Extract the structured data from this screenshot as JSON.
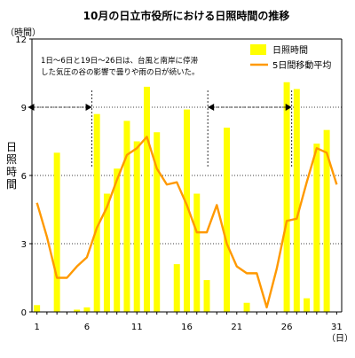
{
  "chart_data": {
    "type": "bar",
    "title": "10月の日立市役所における日照時間の推移",
    "y_unit_label": "（時間）",
    "x_unit_label": "（日）",
    "ylabel": "日照時間",
    "ylim": [
      0,
      12
    ],
    "yticks": [
      0,
      3,
      6,
      9,
      12
    ],
    "xlim": [
      1,
      31
    ],
    "xticks": [
      1,
      6,
      11,
      16,
      21,
      26,
      31
    ],
    "days": [
      1,
      2,
      3,
      4,
      5,
      6,
      7,
      8,
      9,
      10,
      11,
      12,
      13,
      14,
      15,
      16,
      17,
      18,
      19,
      20,
      21,
      22,
      23,
      24,
      25,
      26,
      27,
      28,
      29,
      30,
      31
    ],
    "series": [
      {
        "name": "日照時間",
        "type": "bar",
        "color": "#ffff00",
        "values": [
          0.3,
          0,
          7.0,
          0,
          0.1,
          0.2,
          8.7,
          5.2,
          6.3,
          8.4,
          7.5,
          9.9,
          7.9,
          0,
          2.1,
          8.9,
          5.2,
          1.4,
          0,
          8.1,
          0,
          0.4,
          0,
          0,
          0,
          10.1,
          9.8,
          0.6,
          7.4,
          8.0,
          0
        ]
      },
      {
        "name": "5日間移動平均",
        "type": "line",
        "color": "#ff9900",
        "values": [
          4.8,
          3.3,
          1.5,
          1.5,
          2.0,
          2.4,
          3.7,
          4.6,
          5.8,
          6.9,
          7.2,
          7.7,
          6.3,
          5.6,
          5.7,
          4.7,
          3.5,
          3.5,
          4.7,
          3.0,
          2.0,
          1.7,
          1.7,
          0.2,
          1.9,
          4.0,
          4.1,
          5.7,
          7.2,
          7.0,
          5.6
        ]
      }
    ],
    "annotation": {
      "lines": [
        "1日～6日と19日～26日は、台風と南岸に停滞",
        "した気圧の谷の影響で曇りや雨の日が続いた。"
      ],
      "ranges": [
        [
          1,
          6
        ],
        [
          19,
          26
        ]
      ],
      "range_level": 9
    },
    "legend": {
      "position": "top-right"
    },
    "grid": true
  }
}
